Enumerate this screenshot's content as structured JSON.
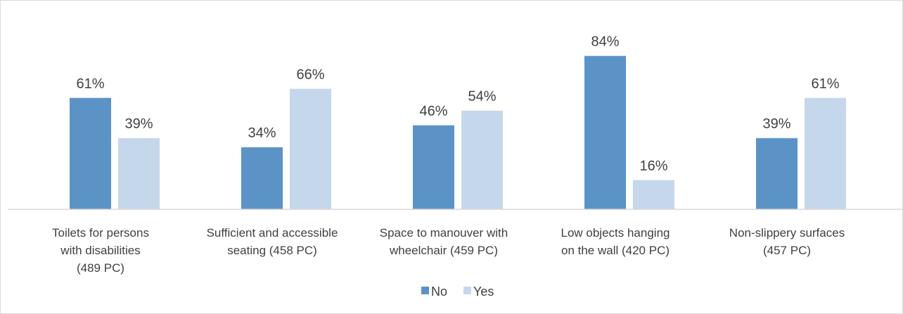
{
  "chart_data": {
    "type": "bar",
    "title": "",
    "xlabel": "",
    "ylabel": "",
    "ylim": [
      0,
      100
    ],
    "grid": false,
    "legend_position": "bottom",
    "categories": [
      [
        "Toilets for persons",
        "with disabilities",
        "(489 PC)"
      ],
      [
        "Sufficient and accessible",
        "seating (458 PC)"
      ],
      [
        "Space to manouver with",
        "wheelchair (459 PC)"
      ],
      [
        "Low objects hanging",
        "on the wall (420 PC)"
      ],
      [
        "Non-slippery surfaces",
        "(457 PC)"
      ]
    ],
    "series": [
      {
        "name": "No",
        "color": "#5b93c7",
        "values": [
          61,
          34,
          46,
          84,
          39
        ],
        "labels": [
          "61%",
          "34%",
          "46%",
          "84%",
          "39%"
        ]
      },
      {
        "name": "Yes",
        "color": "#c5d7eb",
        "values": [
          39,
          66,
          54,
          16,
          61
        ],
        "labels": [
          "39%",
          "66%",
          "54%",
          "16%",
          "61%"
        ]
      }
    ]
  }
}
